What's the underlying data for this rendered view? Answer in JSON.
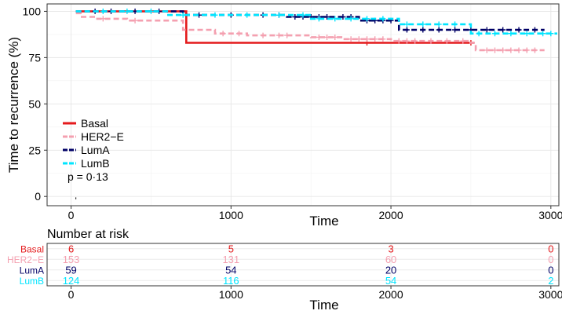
{
  "chart_data": {
    "type": "line",
    "subtype": "kaplan-meier",
    "xlabel": "Time",
    "ylabel": "Time to recurrence (%)",
    "xlim": [
      -150,
      3050
    ],
    "ylim": [
      -5,
      104
    ],
    "x_ticks": [
      0,
      1000,
      2000,
      3000
    ],
    "y_ticks": [
      0,
      25,
      50,
      75,
      100
    ],
    "grid": true,
    "legend_position": "bottom-left",
    "pvalue": "p = 0·13",
    "series": [
      {
        "name": "Basal",
        "color": "#e41a1c",
        "dash": "solid",
        "x": [
          30,
          720,
          720,
          2520
        ],
        "y": [
          100,
          100,
          83,
          83
        ],
        "censor_x": [
          1850,
          2500
        ],
        "censor_y": [
          83,
          83
        ]
      },
      {
        "name": "HER2−E",
        "color": "#f4a0b0",
        "dash": "dashed",
        "x": [
          30,
          60,
          60,
          150,
          150,
          350,
          350,
          700,
          700,
          900,
          900,
          1100,
          1100,
          1500,
          1500,
          1700,
          1700,
          2000,
          2000,
          2480,
          2480,
          2530,
          2530,
          2960
        ],
        "y": [
          99,
          99,
          97,
          97,
          96,
          96,
          95,
          95,
          90,
          90,
          88,
          88,
          87,
          87,
          86,
          86,
          85,
          85,
          84,
          84,
          83,
          83,
          79,
          79
        ],
        "censor_x": [
          200,
          400,
          950,
          1050,
          1200,
          1300,
          1350,
          1550,
          1600,
          1650,
          1750,
          1800,
          1850,
          1900,
          1950,
          2050,
          2100,
          2150,
          2250,
          2350,
          2450,
          2600,
          2650,
          2700,
          2750,
          2800,
          2850,
          2900
        ],
        "censor_y": [
          96,
          95,
          88,
          88,
          87,
          87,
          87,
          86,
          86,
          86,
          85,
          85,
          85,
          85,
          85,
          84,
          84,
          84,
          84,
          84,
          84,
          79,
          79,
          79,
          79,
          79,
          79,
          79
        ]
      },
      {
        "name": "LumA",
        "color": "#000066",
        "dash": "dashed",
        "x": [
          30,
          700,
          700,
          1350,
          1350,
          1800,
          1800,
          2050,
          2050,
          2960
        ],
        "y": [
          100,
          100,
          98,
          98,
          97,
          97,
          95,
          95,
          90,
          90
        ],
        "censor_x": [
          150,
          250,
          400,
          550,
          800,
          1000,
          1200,
          1300,
          1400,
          1450,
          1500,
          1550,
          1600,
          1700,
          1750,
          1850,
          1900,
          1950,
          2000,
          2100,
          2200,
          2300,
          2400,
          2500,
          2600,
          2700,
          2800,
          2900
        ],
        "censor_y": [
          100,
          100,
          100,
          100,
          98,
          98,
          98,
          98,
          97,
          97,
          97,
          97,
          97,
          97,
          97,
          95,
          95,
          95,
          95,
          90,
          90,
          90,
          90,
          90,
          90,
          90,
          90,
          90
        ]
      },
      {
        "name": "LumB",
        "color": "#00e5ff",
        "dash": "dashed",
        "x": [
          30,
          600,
          600,
          1500,
          1500,
          2050,
          2050,
          2500,
          2500,
          3040
        ],
        "y": [
          100,
          100,
          98,
          98,
          96,
          96,
          93,
          93,
          88,
          88
        ],
        "censor_x": [
          200,
          350,
          500,
          700,
          900,
          1100,
          1300,
          1450,
          1550,
          1650,
          1750,
          1850,
          1950,
          2100,
          2200,
          2300,
          2400,
          2550,
          2650,
          2750,
          2850,
          2950,
          3000
        ],
        "censor_y": [
          100,
          100,
          100,
          98,
          98,
          98,
          98,
          98,
          96,
          96,
          96,
          96,
          96,
          93,
          93,
          93,
          93,
          88,
          88,
          88,
          88,
          88,
          88
        ]
      }
    ],
    "risk_table": {
      "title": "Number at risk",
      "xlabel": "Time",
      "times": [
        0,
        1000,
        2000,
        3000
      ],
      "rows": [
        {
          "name": "Basal",
          "color": "#e41a1c",
          "counts": [
            "6",
            "5",
            "3",
            "0"
          ]
        },
        {
          "name": "HER2−E",
          "color": "#f4a0b0",
          "counts": [
            "153",
            "131",
            "60",
            "0"
          ]
        },
        {
          "name": "LumA",
          "color": "#000066",
          "counts": [
            "59",
            "54",
            "20",
            "0"
          ]
        },
        {
          "name": "LumB",
          "color": "#00e5ff",
          "counts": [
            "124",
            "116",
            "54",
            "2"
          ]
        }
      ]
    }
  }
}
